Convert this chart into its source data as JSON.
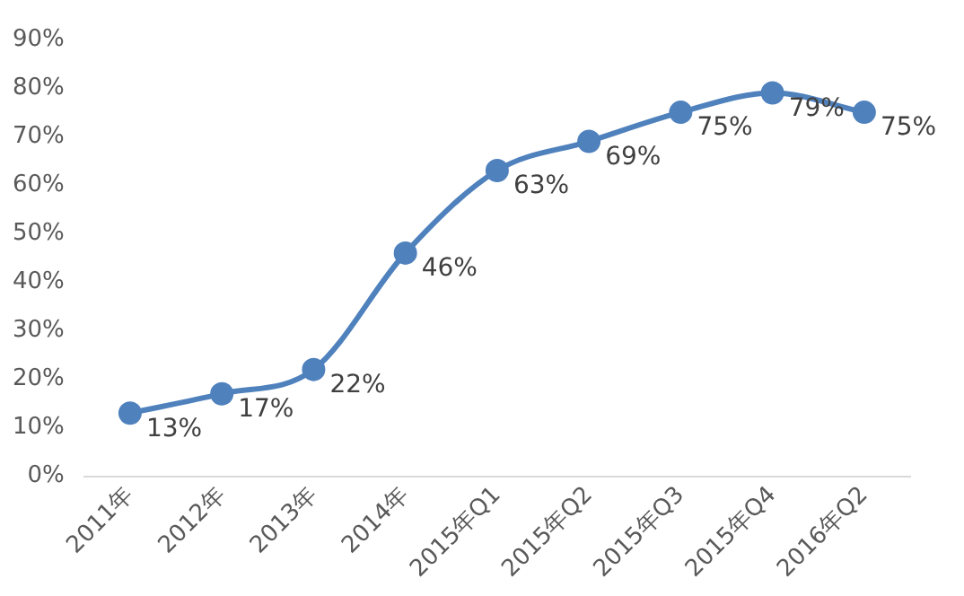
{
  "chart_data": {
    "type": "line",
    "categories": [
      "2011年",
      "2012年",
      "2013年",
      "2014年",
      "2015年Q1",
      "2015年Q2",
      "2015年Q3",
      "2015年Q4",
      "2016年Q2"
    ],
    "series": [
      {
        "color": "#4f81bd",
        "values": [
          13,
          17,
          22,
          46,
          63,
          69,
          75,
          79,
          75
        ],
        "value_labels": [
          "13%",
          "17%",
          "22%",
          "46%",
          "63%",
          "69%",
          "75%",
          "79%",
          "75%"
        ]
      }
    ],
    "ylim": [
      0,
      90
    ],
    "yticks": [
      {
        "value": 0,
        "label": "0%"
      },
      {
        "value": 10,
        "label": "10%"
      },
      {
        "value": 20,
        "label": "20%"
      },
      {
        "value": 30,
        "label": "30%"
      },
      {
        "value": 40,
        "label": "40%"
      },
      {
        "value": 50,
        "label": "50%"
      },
      {
        "value": 60,
        "label": "60%"
      },
      {
        "value": 70,
        "label": "70%"
      },
      {
        "value": 80,
        "label": "80%"
      },
      {
        "value": 90,
        "label": "90%"
      }
    ],
    "grid": false,
    "legend": false,
    "marker": "circle",
    "line_style": "solid"
  }
}
